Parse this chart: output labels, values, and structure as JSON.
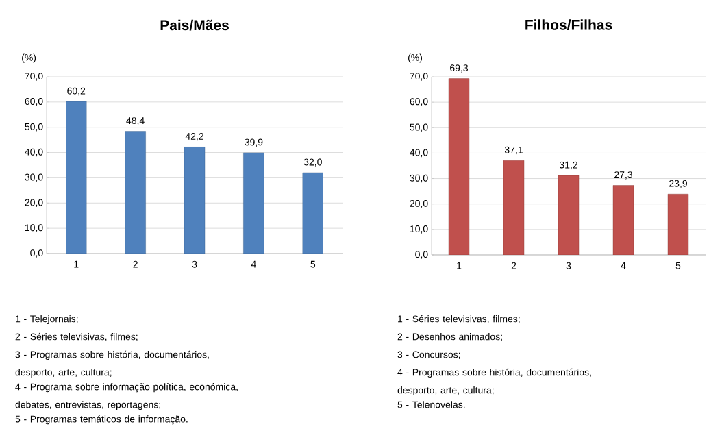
{
  "chart_data": [
    {
      "type": "bar",
      "title": "Pais/Mães",
      "ylabel": "(%)",
      "categories": [
        "1",
        "2",
        "3",
        "4",
        "5"
      ],
      "values": [
        60.2,
        48.4,
        42.2,
        39.9,
        32.0
      ],
      "value_labels": [
        "60,2",
        "48,4",
        "42,2",
        "39,9",
        "32,0"
      ],
      "color": "#4f81bd",
      "ylim": [
        0,
        70
      ],
      "yticks": [
        {
          "value": 0,
          "label": "0,0"
        },
        {
          "value": 10,
          "label": "10,0"
        },
        {
          "value": 20,
          "label": "20,0"
        },
        {
          "value": 30,
          "label": "30,0"
        },
        {
          "value": 40,
          "label": "40,0"
        },
        {
          "value": 50,
          "label": "50,0"
        },
        {
          "value": 60,
          "label": "60,0"
        },
        {
          "value": 70,
          "label": "70,0"
        }
      ],
      "grid": "y",
      "annotations": [
        "1 - Telejornais;",
        "2 - Séries televisivas, filmes;",
        "3 - Programas sobre história, documentários, desporto, arte, cultura;",
        "4 - Programa sobre informação política, económica, debates, entrevistas, reportagens;",
        "5 - Programas temáticos de informação."
      ]
    },
    {
      "type": "bar",
      "title": "Filhos/Filhas",
      "ylabel": "(%)",
      "categories": [
        "1",
        "2",
        "3",
        "4",
        "5"
      ],
      "values": [
        69.3,
        37.1,
        31.2,
        27.3,
        23.9
      ],
      "value_labels": [
        "69,3",
        "37,1",
        "31,2",
        "27,3",
        "23,9"
      ],
      "color": "#c0504d",
      "ylim": [
        0,
        70
      ],
      "yticks": [
        {
          "value": 0,
          "label": "0,0"
        },
        {
          "value": 10,
          "label": "10,0"
        },
        {
          "value": 20,
          "label": "20,0"
        },
        {
          "value": 30,
          "label": "30,0"
        },
        {
          "value": 40,
          "label": "40,0"
        },
        {
          "value": 50,
          "label": "50,0"
        },
        {
          "value": 60,
          "label": "60,0"
        },
        {
          "value": 70,
          "label": "70,0"
        }
      ],
      "grid": "y",
      "annotations": [
        "1 - Séries televisivas, filmes;",
        "2 - Desenhos animados;",
        "3 - Concursos;",
        "4 - Programas sobre história, documentários, desporto, arte, cultura;",
        "5 - Telenovelas."
      ]
    }
  ]
}
